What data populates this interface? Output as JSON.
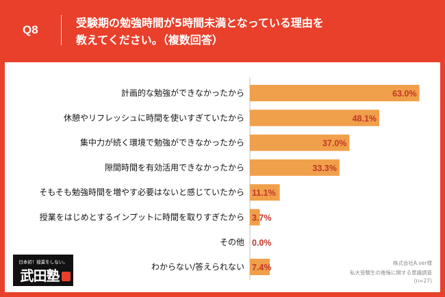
{
  "header": {
    "question_label": "Q8",
    "title_line1": "受験期の勉強時間が5時間未満となっている理由を",
    "title_line2": "教えてください。（複数回答）"
  },
  "colors": {
    "background": "#e8402b",
    "bar": "#f0a04b",
    "value_text": "#c2362a",
    "card": "#ffffff"
  },
  "chart_data": {
    "type": "bar",
    "orientation": "horizontal",
    "categories": [
      "計画的な勉強ができなかったから",
      "休憩やリフレッシュに時間を使いすぎていたから",
      "集中力が続く環境で勉強ができなかったから",
      "隙間時間を有効活用できなかったから",
      "そもそも勉強時間を増やす必要はないと感じていたから",
      "授業をはじめとするインプットに時間を取りすぎたから",
      "その他",
      "わからない/答えられない"
    ],
    "values": [
      63.0,
      48.1,
      37.0,
      33.3,
      11.1,
      3.7,
      0.0,
      7.4
    ],
    "value_labels": [
      "63.0%",
      "48.1%",
      "37.0%",
      "33.3%",
      "11.1%",
      "3.7%",
      "0.0%",
      "7.4%"
    ],
    "unit": "%",
    "grid": false,
    "legend": "none"
  },
  "source": {
    "company": "株式会社A.ver様",
    "survey": "私大受験生の後悔に関する意識調査",
    "n": "(n=27)"
  },
  "logo": {
    "tagline": "日本初！授業をしない。",
    "name": "武田塾"
  }
}
